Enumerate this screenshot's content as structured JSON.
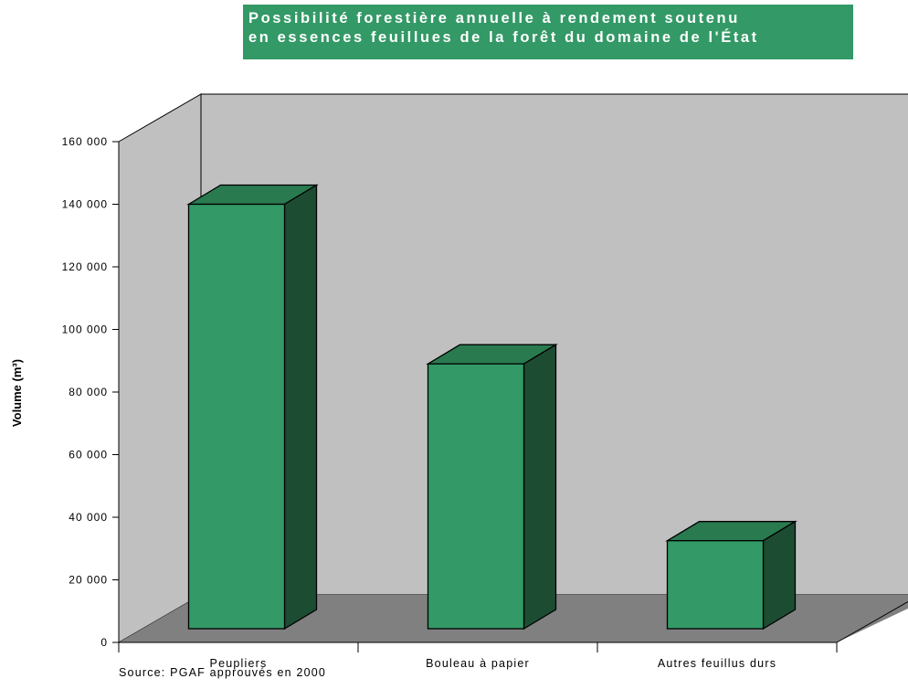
{
  "title_lines": [
    "Possibilité forestière annuelle à rendement soutenu",
    "en essences feuillues de la forêt du domaine de l'État"
  ],
  "source": "Source: PGAF approuvés en 2000",
  "colors": {
    "title_bg": "#339966",
    "bar_front": "#339966",
    "bar_top": "#2a7a50",
    "bar_side": "#1c4d33",
    "back_wall": "#c0c0c0",
    "side_wall": "#c0c0c0",
    "floor": "#808080"
  },
  "chart_data": {
    "type": "bar",
    "categories": [
      "Peupliers",
      "Bouleau à papier",
      "Autres feuillus durs"
    ],
    "values": [
      140000,
      89000,
      32500
    ],
    "ylabel": "Volume (m³)",
    "ylim": [
      0,
      160000
    ],
    "yticks": [
      0,
      20000,
      40000,
      60000,
      80000,
      100000,
      120000,
      140000,
      160000
    ],
    "ytick_labels": [
      "0",
      "20 000",
      "40 000",
      "60 000",
      "80 000",
      "100 000",
      "120 000",
      "140 000",
      "160 000"
    ],
    "grid": false,
    "legend": "none",
    "style": "3d"
  }
}
